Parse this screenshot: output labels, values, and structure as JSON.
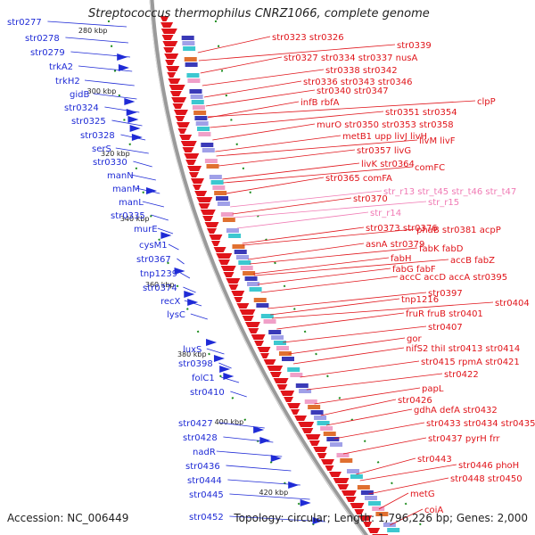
{
  "title": "Streptococcus thermophilus CNRZ1066, complete genome",
  "accession": "Accession: NC_006449",
  "summary": "Topology: circular; Length: 1,796,226 bp; Genes: 2,000",
  "colors": {
    "forward": "#1f2bd6",
    "reverse": "#e0141a",
    "rna": "#f07ab4",
    "backbone": "#9a9a9a",
    "tick": "#1a8a1a"
  },
  "scale_labels": [
    "280 kbp",
    "300 kbp",
    "320 kbp",
    "340 kbp",
    "360 kbp",
    "380 kbp",
    "400 kbp",
    "420 kbp"
  ],
  "left_genes": [
    "str0277",
    "str0278",
    "str0279",
    "trkA2",
    "trkH2",
    "gidB",
    "str0324",
    "str0325",
    "str0328",
    "serS",
    "str0330",
    "manN",
    "manM",
    "manL",
    "str0335",
    "murE",
    "cysM1",
    "str0367",
    "tnp1239",
    "str0374",
    "recX",
    "lysC",
    "luxS",
    "str0398",
    "folC1",
    "str0410",
    "str0427",
    "str0428",
    "nadR",
    "str0436",
    "str0444",
    "str0445",
    "str0452"
  ],
  "right_genes": [
    [
      "str0323",
      "str0326"
    ],
    [
      "str0339"
    ],
    [
      "str0327",
      "str0334",
      "str0337",
      "nusA"
    ],
    [
      "str0338",
      "str0342"
    ],
    [
      "str0336",
      "str0343",
      "str0346"
    ],
    [
      "str0340",
      "str0347"
    ],
    [
      "infB",
      "rbfA"
    ],
    [
      "clpP"
    ],
    [
      "str0351",
      "str0354"
    ],
    [
      "murO",
      "str0350",
      "str0353",
      "str0358"
    ],
    [
      "metB1",
      "upp",
      "livJ",
      "livH"
    ],
    [
      "livM",
      "livF"
    ],
    [
      "str0357",
      "livG"
    ],
    [
      "livK",
      "str0364"
    ],
    [
      "comFC"
    ],
    [
      "str0365",
      "comFA"
    ],
    [
      "str0370"
    ],
    [
      "str_r13",
      "str_t45",
      "str_t46",
      "str_t47"
    ],
    [
      "str_r15"
    ],
    [
      "str_r14"
    ],
    [
      "str0373",
      "str0376"
    ],
    [
      "phaB",
      "str0381",
      "acpP"
    ],
    [
      "asnA",
      "str0379"
    ],
    [
      "fabK",
      "fabD"
    ],
    [
      "fabH"
    ],
    [
      "accB",
      "fabZ"
    ],
    [
      "fabG",
      "fabF"
    ],
    [
      "accC",
      "accD",
      "accA",
      "str0395"
    ],
    [
      "str0397"
    ],
    [
      "tnp1216"
    ],
    [
      "str0404"
    ],
    [
      "fruR",
      "fruB",
      "str0401"
    ],
    [
      "str0407"
    ],
    [
      "gor"
    ],
    [
      "nifS2",
      "thiI",
      "str0413",
      "str0414"
    ],
    [
      "str0415",
      "rpmA",
      "str0421"
    ],
    [
      "str0422"
    ],
    [
      "papL"
    ],
    [
      "str0426"
    ],
    [
      "gdhA",
      "defA",
      "str0432"
    ],
    [
      "str0433",
      "str0434",
      "str0435"
    ],
    [
      "str0437",
      "pyrH",
      "frr"
    ],
    [
      "str0443"
    ],
    [
      "str0446",
      "phoH"
    ],
    [
      "str0448",
      "str0450"
    ],
    [
      "metG"
    ],
    [
      "coiA"
    ]
  ]
}
